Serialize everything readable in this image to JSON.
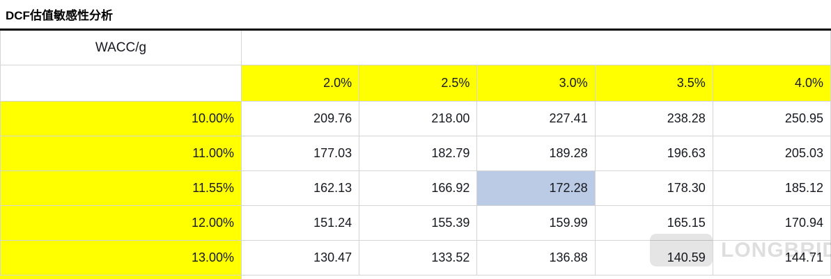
{
  "title": "DCF估值敏感性分析",
  "watermark": "LONGBRIDGE",
  "chart_data": {
    "type": "table",
    "title": "DCF估值敏感性分析",
    "corner_label": "WACC/g",
    "col_headers": [
      "2.0%",
      "2.5%",
      "3.0%",
      "3.5%",
      "4.0%"
    ],
    "row_headers": [
      "10.00%",
      "11.00%",
      "11.55%",
      "12.00%",
      "13.00%"
    ],
    "rows": [
      [
        "209.76",
        "218.00",
        "227.41",
        "238.28",
        "250.95"
      ],
      [
        "177.03",
        "182.79",
        "189.28",
        "196.63",
        "205.03"
      ],
      [
        "162.13",
        "166.92",
        "172.28",
        "178.30",
        "185.12"
      ],
      [
        "151.24",
        "155.39",
        "159.99",
        "165.15",
        "170.94"
      ],
      [
        "130.47",
        "133.52",
        "136.88",
        "140.59",
        "144.71"
      ]
    ],
    "highlighted_cell": {
      "row_header": "11.55%",
      "col_header": "3.0%",
      "value": "172.28"
    },
    "colors": {
      "header_bg": "#FFFF00",
      "highlight_bg": "#BBCAE5",
      "grid_line": "#D4D4D4",
      "title_rule": "#000000"
    },
    "legend": null,
    "grid": true
  }
}
